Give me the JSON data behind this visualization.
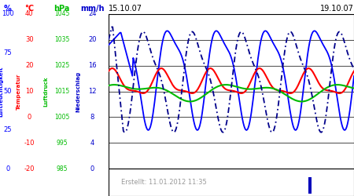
{
  "title_left": "15.10.07",
  "title_right": "19.10.07",
  "footer": "Erstellt: 11.01.2012 11:35",
  "bg_color": "#ffffff",
  "axis_labels": {
    "humidity": "Luftfeuchtigkeit",
    "temp": "Temperatur",
    "pressure": "Luftdruck",
    "precip": "Niederschlag"
  },
  "units": [
    "%",
    "°C",
    "hPa",
    "mm/h"
  ],
  "unit_colors": [
    "#0000ff",
    "#ff0000",
    "#00bb00",
    "#0000cc"
  ],
  "hum_ticks": [
    100,
    75,
    50,
    25,
    0
  ],
  "temp_ticks": [
    40,
    30,
    20,
    10,
    0,
    -10,
    -20
  ],
  "pres_ticks": [
    1045,
    1035,
    1025,
    1015,
    1005,
    995,
    985
  ],
  "prec_ticks": [
    24,
    20,
    16,
    12,
    8,
    4,
    0
  ],
  "grid_color": "#000000",
  "line_color_humidity": "#0000ff",
  "line_color_temp": "#ff0000",
  "line_color_pressure": "#00bb00",
  "line_color_precip": "#00008b"
}
